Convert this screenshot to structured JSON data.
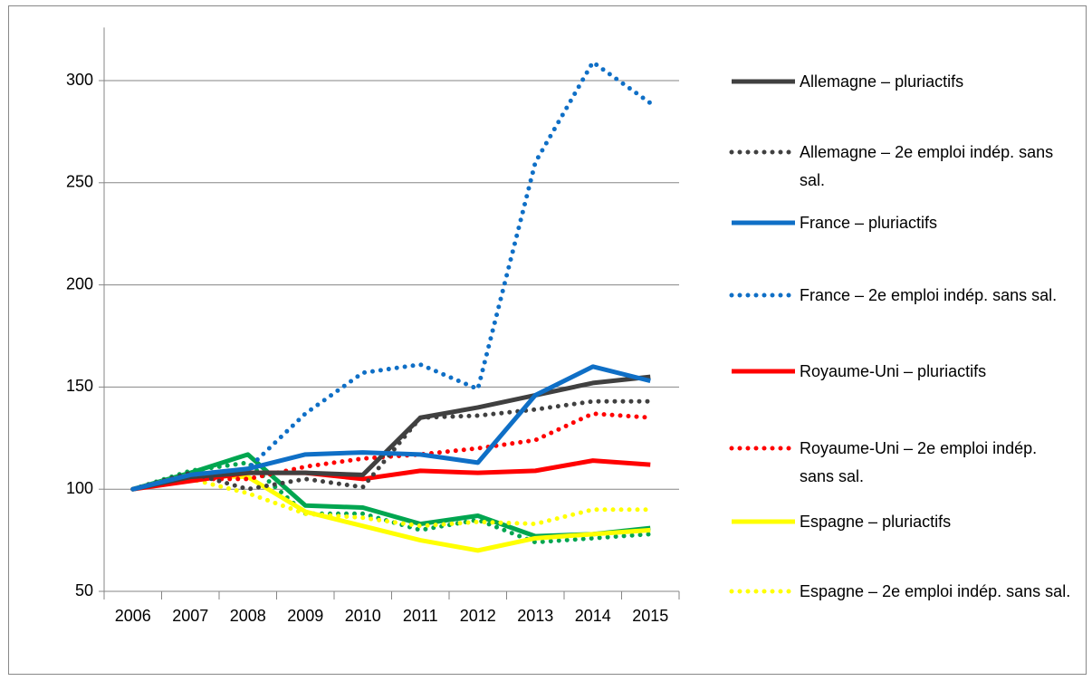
{
  "chart_data": {
    "type": "line",
    "categories": [
      "2006",
      "2007",
      "2008",
      "2009",
      "2010",
      "2011",
      "2012",
      "2013",
      "2014",
      "2015"
    ],
    "ylim": [
      50,
      326
    ],
    "yticks": [
      50,
      100,
      150,
      200,
      250,
      300
    ],
    "grid": true,
    "legend": "right",
    "series": [
      {
        "name": "Allemagne – pluriactifs",
        "color": "#404040",
        "dash": false,
        "values": [
          100,
          106,
          108,
          108,
          107,
          135,
          140,
          146,
          152,
          155
        ]
      },
      {
        "name": "Allemagne – 2e emploi indép. sans sal.",
        "color": "#404040",
        "dash": true,
        "values": [
          100,
          108,
          100,
          105,
          101,
          135,
          136,
          139,
          143,
          143
        ]
      },
      {
        "name": "France – pluriactifs",
        "color": "#0f6fc6",
        "dash": false,
        "values": [
          100,
          107,
          110,
          117,
          118,
          117,
          113,
          146,
          160,
          153
        ]
      },
      {
        "name": "France – 2e emploi indép. sans sal.",
        "color": "#0f6fc6",
        "dash": true,
        "values": [
          100,
          107,
          110,
          137,
          157,
          161,
          149,
          260,
          309,
          289
        ]
      },
      {
        "name": "Royaume-Uni – pluriactifs",
        "color": "#ff0000",
        "dash": false,
        "values": [
          100,
          104,
          108,
          108,
          105,
          109,
          108,
          109,
          114,
          112
        ]
      },
      {
        "name": "Royaume-Uni – 2e emploi indép. sans sal.",
        "color": "#ff0000",
        "dash": true,
        "values": [
          100,
          105,
          105,
          111,
          115,
          117,
          120,
          124,
          137,
          135
        ]
      },
      {
        "name": "Espagne – pluriactifs",
        "color": "#ffff00",
        "dash": false,
        "values": [
          100,
          107,
          106,
          89,
          82,
          75,
          70,
          76,
          78,
          80
        ]
      },
      {
        "name": "Espagne – 2e emploi indép. sans sal.",
        "color": "#ffff00",
        "dash": true,
        "values": [
          100,
          105,
          98,
          88,
          86,
          82,
          84,
          83,
          90,
          90
        ]
      },
      {
        "color": "#00a650",
        "dash": false,
        "values": [
          100,
          108,
          117,
          92,
          91,
          83,
          87,
          77,
          78,
          81
        ]
      },
      {
        "color": "#00a650",
        "dash": true,
        "values": [
          100,
          109,
          113,
          88,
          88,
          80,
          85,
          74,
          76,
          78
        ]
      }
    ]
  }
}
